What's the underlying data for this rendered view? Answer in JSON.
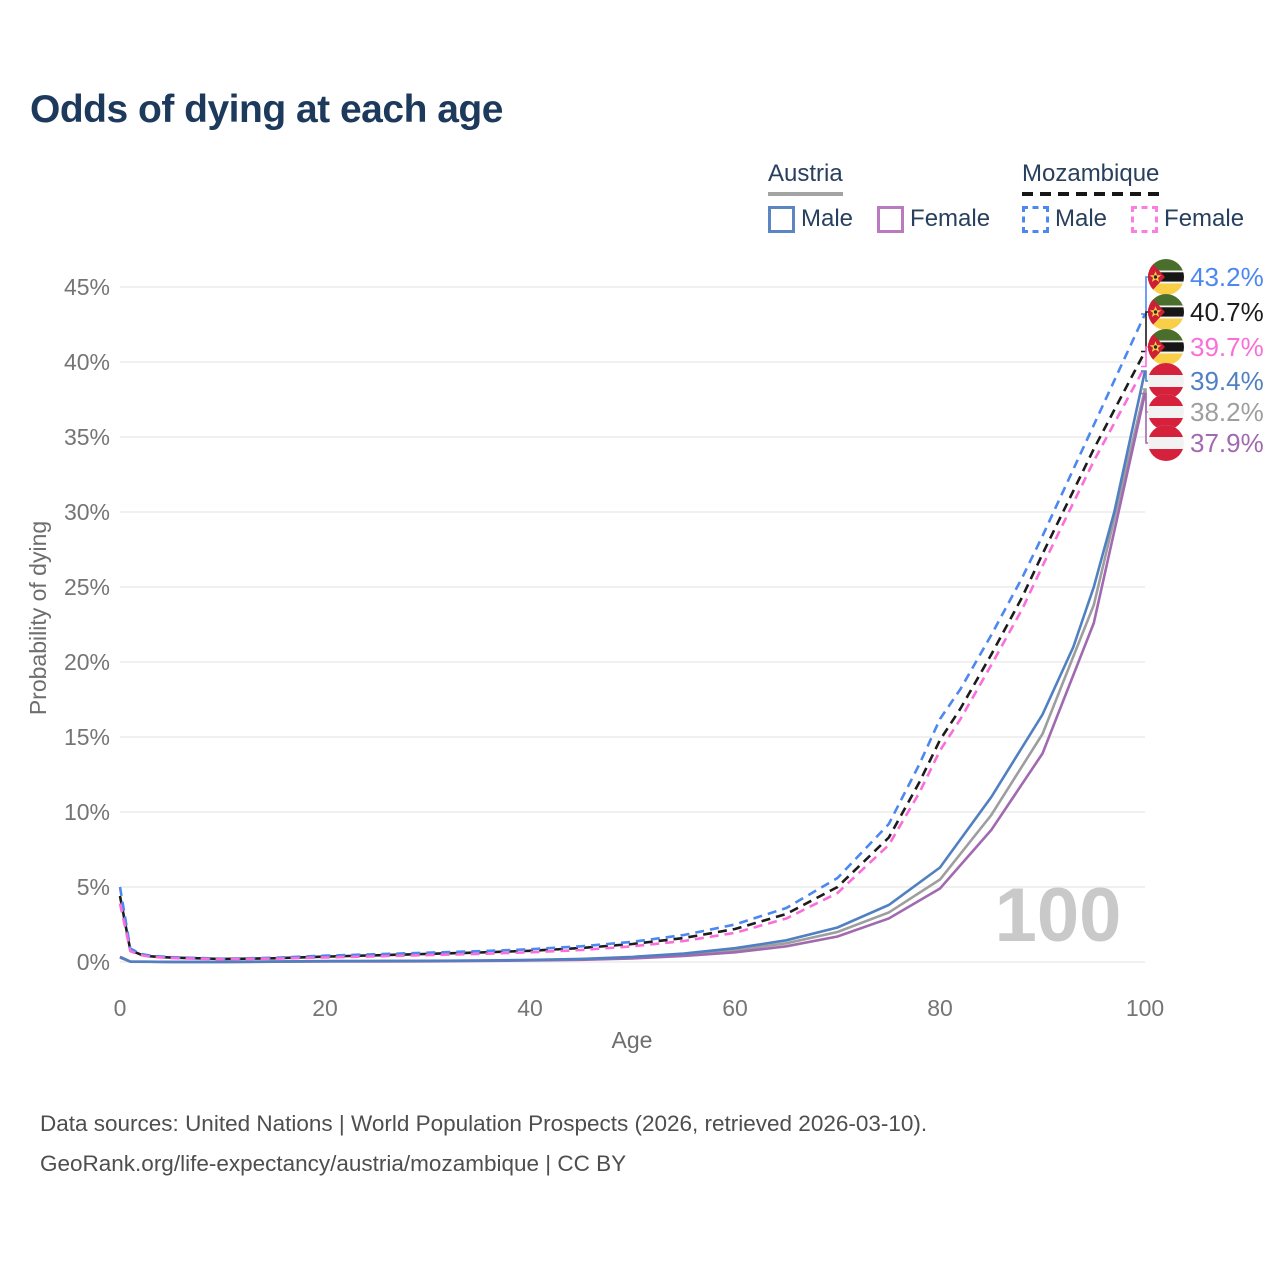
{
  "title": "Odds of dying at each age",
  "legend": {
    "austria": {
      "label": "Austria",
      "male": "Male",
      "female": "Female",
      "male_color": "#5b86c2",
      "female_color": "#bb79bf",
      "rule_color": "#a3a3a3"
    },
    "mozambique": {
      "label": "Mozambique",
      "male": "Male",
      "female": "Female",
      "male_color": "#4d87f0",
      "female_color": "#fc7ce0",
      "rule_color": "#161616"
    }
  },
  "watermark": "100",
  "footer": {
    "line1": "Data sources: United Nations | World Population Prospects (2026, retrieved 2026-03-10).",
    "line2": "GeoRank.org/life-expectancy/austria/mozambique | CC BY"
  },
  "chart_data": {
    "type": "line",
    "title": "Odds of dying at each age",
    "xlabel": "Age",
    "ylabel": "Probability of dying",
    "xlim": [
      0,
      100
    ],
    "ylim": [
      0,
      45
    ],
    "xticks": [
      0,
      20,
      40,
      60,
      80,
      100
    ],
    "yticks": [
      0,
      5,
      10,
      15,
      20,
      25,
      30,
      35,
      40,
      45
    ],
    "ytick_labels": [
      "0%",
      "5%",
      "10%",
      "15%",
      "20%",
      "25%",
      "30%",
      "35%",
      "40%",
      "45%"
    ],
    "grid": "horizontal-only",
    "legend_position": "top-right",
    "colors": {
      "grid": "#ececec",
      "tick_text": "#757575",
      "axis_title": "#6e6e6e",
      "watermark": "#c9c9c9"
    },
    "series": [
      {
        "name": "Mozambique Male",
        "country": "Mozambique",
        "sex": "male",
        "style": "dashed",
        "color": "#4d87f0",
        "end_value": 43.2,
        "end_label": "43.2%",
        "flag": "mozambique",
        "points": [
          [
            0,
            5.0
          ],
          [
            1,
            0.9
          ],
          [
            2,
            0.55
          ],
          [
            3,
            0.42
          ],
          [
            5,
            0.32
          ],
          [
            10,
            0.22
          ],
          [
            15,
            0.28
          ],
          [
            20,
            0.42
          ],
          [
            25,
            0.52
          ],
          [
            30,
            0.62
          ],
          [
            35,
            0.72
          ],
          [
            40,
            0.85
          ],
          [
            45,
            1.05
          ],
          [
            50,
            1.35
          ],
          [
            55,
            1.8
          ],
          [
            60,
            2.5
          ],
          [
            65,
            3.6
          ],
          [
            70,
            5.6
          ],
          [
            75,
            9.2
          ],
          [
            78,
            13.2
          ],
          [
            80,
            16.2
          ],
          [
            82,
            18.2
          ],
          [
            85,
            21.8
          ],
          [
            88,
            25.6
          ],
          [
            90,
            28.4
          ],
          [
            95,
            35.8
          ],
          [
            100,
            43.2
          ]
        ]
      },
      {
        "name": "Mozambique Both sexes",
        "country": "Mozambique",
        "sex": "both",
        "style": "dashed",
        "color": "#1c1c1c",
        "end_value": 40.7,
        "end_label": "40.7%",
        "flag": "mozambique",
        "points": [
          [
            0,
            4.4
          ],
          [
            1,
            0.8
          ],
          [
            2,
            0.5
          ],
          [
            3,
            0.38
          ],
          [
            5,
            0.29
          ],
          [
            10,
            0.2
          ],
          [
            15,
            0.25
          ],
          [
            20,
            0.36
          ],
          [
            25,
            0.45
          ],
          [
            30,
            0.54
          ],
          [
            35,
            0.63
          ],
          [
            40,
            0.75
          ],
          [
            45,
            0.93
          ],
          [
            50,
            1.2
          ],
          [
            55,
            1.6
          ],
          [
            60,
            2.2
          ],
          [
            65,
            3.2
          ],
          [
            70,
            5.0
          ],
          [
            75,
            8.3
          ],
          [
            78,
            12.0
          ],
          [
            80,
            14.8
          ],
          [
            82,
            16.9
          ],
          [
            85,
            20.5
          ],
          [
            88,
            24.3
          ],
          [
            90,
            27.2
          ],
          [
            95,
            34.2
          ],
          [
            100,
            40.7
          ]
        ]
      },
      {
        "name": "Mozambique Female",
        "country": "Mozambique",
        "sex": "female",
        "style": "dashed",
        "color": "#fb6ed9",
        "end_value": 39.7,
        "end_label": "39.7%",
        "flag": "mozambique",
        "points": [
          [
            0,
            3.9
          ],
          [
            1,
            0.72
          ],
          [
            2,
            0.46
          ],
          [
            3,
            0.35
          ],
          [
            5,
            0.26
          ],
          [
            10,
            0.18
          ],
          [
            15,
            0.22
          ],
          [
            20,
            0.3
          ],
          [
            25,
            0.38
          ],
          [
            30,
            0.46
          ],
          [
            35,
            0.54
          ],
          [
            40,
            0.65
          ],
          [
            45,
            0.8
          ],
          [
            50,
            1.05
          ],
          [
            55,
            1.4
          ],
          [
            60,
            1.95
          ],
          [
            65,
            2.9
          ],
          [
            70,
            4.6
          ],
          [
            75,
            7.8
          ],
          [
            78,
            11.3
          ],
          [
            80,
            14.1
          ],
          [
            82,
            16.2
          ],
          [
            85,
            19.8
          ],
          [
            88,
            23.5
          ],
          [
            90,
            26.4
          ],
          [
            95,
            33.4
          ],
          [
            100,
            39.7
          ]
        ]
      },
      {
        "name": "Austria Male",
        "country": "Austria",
        "sex": "male",
        "style": "solid",
        "color": "#5080c1",
        "end_value": 39.4,
        "end_label": "39.4%",
        "flag": "austria",
        "points": [
          [
            0,
            0.35
          ],
          [
            1,
            0.03
          ],
          [
            5,
            0.01
          ],
          [
            10,
            0.01
          ],
          [
            15,
            0.03
          ],
          [
            20,
            0.06
          ],
          [
            25,
            0.07
          ],
          [
            30,
            0.08
          ],
          [
            35,
            0.1
          ],
          [
            40,
            0.14
          ],
          [
            45,
            0.21
          ],
          [
            50,
            0.34
          ],
          [
            55,
            0.56
          ],
          [
            60,
            0.92
          ],
          [
            65,
            1.45
          ],
          [
            70,
            2.3
          ],
          [
            75,
            3.8
          ],
          [
            80,
            6.3
          ],
          [
            85,
            11.0
          ],
          [
            90,
            16.5
          ],
          [
            93,
            21.0
          ],
          [
            95,
            25.0
          ],
          [
            97,
            30.0
          ],
          [
            100,
            39.4
          ]
        ]
      },
      {
        "name": "Austria Both sexes",
        "country": "Austria",
        "sex": "both",
        "style": "solid",
        "color": "#9e9e9e",
        "end_value": 38.2,
        "end_label": "38.2%",
        "flag": "austria",
        "points": [
          [
            0,
            0.32
          ],
          [
            1,
            0.03
          ],
          [
            5,
            0.01
          ],
          [
            10,
            0.01
          ],
          [
            15,
            0.02
          ],
          [
            20,
            0.05
          ],
          [
            25,
            0.06
          ],
          [
            30,
            0.07
          ],
          [
            35,
            0.09
          ],
          [
            40,
            0.12
          ],
          [
            45,
            0.18
          ],
          [
            50,
            0.29
          ],
          [
            55,
            0.47
          ],
          [
            60,
            0.78
          ],
          [
            65,
            1.25
          ],
          [
            70,
            2.0
          ],
          [
            75,
            3.3
          ],
          [
            80,
            5.5
          ],
          [
            85,
            9.8
          ],
          [
            90,
            15.2
          ],
          [
            95,
            23.8
          ],
          [
            100,
            38.2
          ]
        ]
      },
      {
        "name": "Austria Female",
        "country": "Austria",
        "sex": "female",
        "style": "solid",
        "color": "#a169b0",
        "end_value": 37.9,
        "end_label": "37.9%",
        "flag": "austria",
        "points": [
          [
            0,
            0.3
          ],
          [
            1,
            0.02
          ],
          [
            5,
            0.01
          ],
          [
            10,
            0.01
          ],
          [
            15,
            0.02
          ],
          [
            20,
            0.03
          ],
          [
            25,
            0.04
          ],
          [
            30,
            0.05
          ],
          [
            35,
            0.07
          ],
          [
            40,
            0.1
          ],
          [
            45,
            0.15
          ],
          [
            50,
            0.24
          ],
          [
            55,
            0.4
          ],
          [
            60,
            0.65
          ],
          [
            65,
            1.05
          ],
          [
            70,
            1.7
          ],
          [
            75,
            2.9
          ],
          [
            80,
            4.9
          ],
          [
            85,
            8.8
          ],
          [
            90,
            13.9
          ],
          [
            95,
            22.6
          ],
          [
            100,
            37.9
          ]
        ]
      }
    ]
  }
}
